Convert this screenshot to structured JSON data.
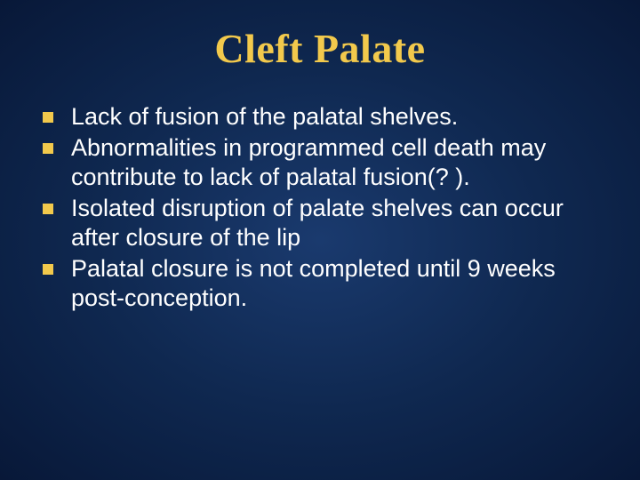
{
  "slide": {
    "title": "Cleft Palate",
    "title_color": "#f2c94c",
    "title_fontsize": 46,
    "title_fontfamily": "Times New Roman",
    "background_gradient": [
      "#1a3a6e",
      "#0f2850",
      "#081838"
    ],
    "bullet_marker_color": "#f2c94c",
    "bullet_marker_size": 12,
    "text_color": "#ffffff",
    "body_fontsize": 27,
    "bullets": [
      "Lack of fusion of the palatal shelves.",
      "Abnormalities in programmed cell death may contribute to lack of palatal fusion(? ).",
      "Isolated disruption of palate shelves can occur after closure of the lip",
      "Palatal closure is not completed until 9 weeks post-conception."
    ]
  }
}
